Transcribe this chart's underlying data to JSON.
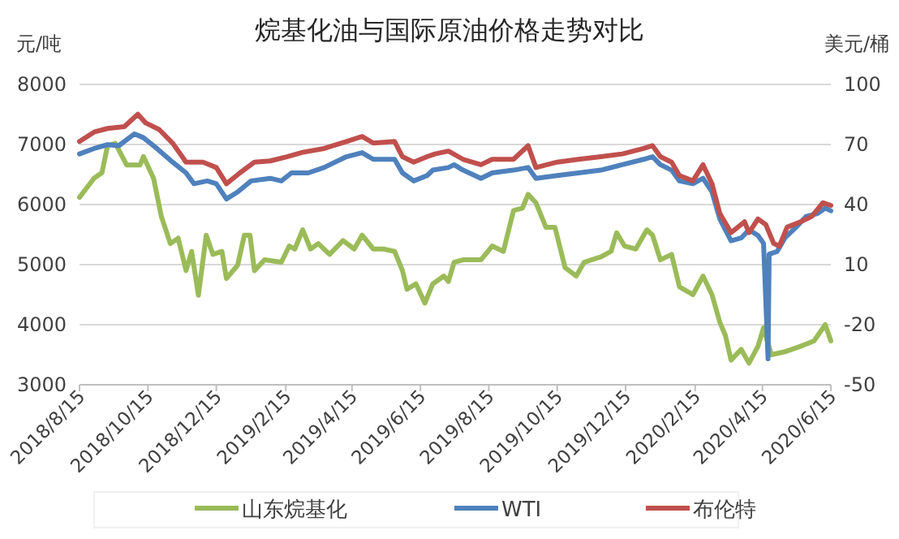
{
  "chart_data": {
    "type": "line",
    "title": "烷基化油与国际原油价格走势对比",
    "ylabel": "元/吨",
    "y2label": "美元/桶",
    "xlim": [
      "2018-08-15",
      "2020-06-15"
    ],
    "xticks": [
      {
        "value": "2018-08-15",
        "label": "2018/8/15"
      },
      {
        "value": "2018-10-15",
        "label": "2018/10/15"
      },
      {
        "value": "2018-12-15",
        "label": "2018/12/15"
      },
      {
        "value": "2019-02-15",
        "label": "2019/2/15"
      },
      {
        "value": "2019-04-15",
        "label": "2019/4/15"
      },
      {
        "value": "2019-06-15",
        "label": "2019/6/15"
      },
      {
        "value": "2019-08-15",
        "label": "2019/8/15"
      },
      {
        "value": "2019-10-15",
        "label": "2019/10/15"
      },
      {
        "value": "2019-12-15",
        "label": "2019/12/15"
      },
      {
        "value": "2020-02-15",
        "label": "2020/2/15"
      },
      {
        "value": "2020-04-15",
        "label": "2020/4/15"
      },
      {
        "value": "2020-06-15",
        "label": "2020/6/15"
      }
    ],
    "ylim": [
      3000,
      8000
    ],
    "yticks": [
      3000,
      4000,
      5000,
      6000,
      7000,
      8000
    ],
    "y2lim": [
      -50,
      100
    ],
    "y2ticks": [
      -50,
      -20,
      10,
      40,
      70,
      100
    ],
    "grid": "y",
    "legend": "bottom",
    "line_style": "solid",
    "marker": "none",
    "series": [
      {
        "name": "山东烷基化",
        "color": "#9bbb59",
        "x": [
          "2018-08-15",
          "2018-08-28",
          "2018-09-04",
          "2018-09-09",
          "2018-09-16",
          "2018-09-26",
          "2018-10-08",
          "2018-10-11",
          "2018-10-20",
          "2018-10-27",
          "2018-11-04",
          "2018-11-11",
          "2018-11-18",
          "2018-11-23",
          "2018-11-29",
          "2018-12-06",
          "2018-12-12",
          "2018-12-20",
          "2018-12-24",
          "2019-01-03",
          "2019-01-09",
          "2019-01-14",
          "2019-01-18",
          "2019-01-27",
          "2019-02-11",
          "2019-02-18",
          "2019-02-23",
          "2019-03-02",
          "2019-03-09",
          "2019-03-16",
          "2019-03-26",
          "2019-04-07",
          "2019-04-17",
          "2019-04-24",
          "2019-05-04",
          "2019-05-13",
          "2019-05-23",
          "2019-05-30",
          "2019-06-03",
          "2019-06-11",
          "2019-06-19",
          "2019-06-26",
          "2019-07-06",
          "2019-07-10",
          "2019-07-15",
          "2019-07-23",
          "2019-08-08",
          "2019-08-18",
          "2019-08-28",
          "2019-09-06",
          "2019-09-14",
          "2019-09-19",
          "2019-09-26",
          "2019-10-05",
          "2019-10-13",
          "2019-10-22",
          "2019-11-01",
          "2019-11-08",
          "2019-11-23",
          "2019-12-02",
          "2019-12-07",
          "2019-12-14",
          "2019-12-24",
          "2020-01-03",
          "2020-01-08",
          "2020-01-15",
          "2020-01-25",
          "2020-02-01",
          "2020-02-13",
          "2020-02-22",
          "2020-03-01",
          "2020-03-08",
          "2020-03-13",
          "2020-03-18",
          "2020-03-27",
          "2020-04-03",
          "2020-04-11",
          "2020-04-16",
          "2020-04-23",
          "2020-05-05",
          "2020-05-19",
          "2020-05-31",
          "2020-06-10",
          "2020-06-15"
        ],
        "values": [
          6120,
          6440,
          6530,
          6980,
          7020,
          6660,
          6660,
          6800,
          6440,
          5800,
          5350,
          5440,
          4900,
          5220,
          4490,
          5490,
          5170,
          5220,
          4770,
          4990,
          5490,
          5490,
          4900,
          5080,
          5040,
          5310,
          5260,
          5580,
          5260,
          5350,
          5170,
          5400,
          5260,
          5490,
          5260,
          5260,
          5220,
          4900,
          4590,
          4680,
          4360,
          4680,
          4810,
          4720,
          5040,
          5080,
          5080,
          5310,
          5220,
          5900,
          5940,
          6170,
          6030,
          5620,
          5620,
          4950,
          4810,
          5040,
          5130,
          5220,
          5530,
          5310,
          5260,
          5580,
          5490,
          5080,
          5170,
          4630,
          4500,
          4810,
          4500,
          4040,
          3820,
          3410,
          3590,
          3360,
          3640,
          3950,
          3500,
          3550,
          3640,
          3730,
          4000,
          3730
        ]
      },
      {
        "name": "WTI",
        "color": "#4f81bd",
        "axis": "y2",
        "x": [
          "2018-08-15",
          "2018-08-28",
          "2018-09-09",
          "2018-09-19",
          "2018-10-03",
          "2018-10-11",
          "2018-10-23",
          "2018-11-06",
          "2018-11-18",
          "2018-11-25",
          "2018-12-07",
          "2018-12-15",
          "2018-12-24",
          "2019-01-03",
          "2019-01-15",
          "2019-02-01",
          "2019-02-11",
          "2019-02-20",
          "2019-03-07",
          "2019-03-21",
          "2019-04-10",
          "2019-04-24",
          "2019-05-04",
          "2019-05-23",
          "2019-05-30",
          "2019-06-09",
          "2019-06-21",
          "2019-06-26",
          "2019-07-10",
          "2019-07-15",
          "2019-07-23",
          "2019-08-08",
          "2019-08-18",
          "2019-09-06",
          "2019-09-19",
          "2019-09-26",
          "2019-10-15",
          "2019-11-03",
          "2019-11-23",
          "2019-12-12",
          "2019-12-31",
          "2020-01-08",
          "2020-01-15",
          "2020-01-25",
          "2020-02-01",
          "2020-02-13",
          "2020-02-22",
          "2020-03-01",
          "2020-03-08",
          "2020-03-18",
          "2020-03-27",
          "2020-04-03",
          "2020-04-11",
          "2020-04-16",
          "2020-04-20",
          "2020-04-21",
          "2020-04-28",
          "2020-05-05",
          "2020-05-15",
          "2020-05-24",
          "2020-06-03",
          "2020-06-10",
          "2020-06-15"
        ],
        "values": [
          65.3,
          68.0,
          69.9,
          69.4,
          75.3,
          73.4,
          68.0,
          61.2,
          55.8,
          50.4,
          51.8,
          50.4,
          42.8,
          46.3,
          51.8,
          53.1,
          51.8,
          55.8,
          55.8,
          58.5,
          63.9,
          65.9,
          62.6,
          62.6,
          55.8,
          51.8,
          54.5,
          57.2,
          58.5,
          59.9,
          57.2,
          53.1,
          55.8,
          57.2,
          58.5,
          53.1,
          54.5,
          55.8,
          57.2,
          59.9,
          62.6,
          63.9,
          59.9,
          57.2,
          51.8,
          50.4,
          53.1,
          46.3,
          32.8,
          21.9,
          23.3,
          27.4,
          24.6,
          20.6,
          -37,
          15.2,
          16.5,
          23.3,
          28.7,
          34.1,
          35.5,
          38.2,
          36.9
        ]
      },
      {
        "name": "布伦特",
        "color": "#c0504d",
        "axis": "y2",
        "x": [
          "2018-08-15",
          "2018-08-28",
          "2018-09-09",
          "2018-09-24",
          "2018-10-06",
          "2018-10-13",
          "2018-10-25",
          "2018-11-06",
          "2018-11-18",
          "2018-12-03",
          "2018-12-15",
          "2018-12-24",
          "2019-01-05",
          "2019-01-18",
          "2019-02-01",
          "2019-02-16",
          "2019-03-02",
          "2019-03-21",
          "2019-04-10",
          "2019-04-24",
          "2019-05-04",
          "2019-05-23",
          "2019-05-30",
          "2019-06-09",
          "2019-06-21",
          "2019-06-28",
          "2019-07-10",
          "2019-07-23",
          "2019-08-08",
          "2019-08-18",
          "2019-09-06",
          "2019-09-19",
          "2019-09-26",
          "2019-10-15",
          "2019-11-03",
          "2019-11-23",
          "2019-12-12",
          "2019-12-31",
          "2020-01-08",
          "2020-01-15",
          "2020-01-25",
          "2020-02-01",
          "2020-02-13",
          "2020-02-22",
          "2020-03-01",
          "2020-03-08",
          "2020-03-18",
          "2020-03-30",
          "2020-04-03",
          "2020-04-11",
          "2020-04-18",
          "2020-04-25",
          "2020-04-30",
          "2020-05-07",
          "2020-05-19",
          "2020-05-29",
          "2020-06-08",
          "2020-06-15"
        ],
        "values": [
          71.5,
          76.2,
          78.0,
          78.9,
          85.1,
          80.8,
          77.5,
          70.7,
          61.2,
          61.2,
          58.5,
          50.4,
          55.8,
          61.2,
          61.8,
          63.9,
          66.1,
          68.0,
          71.5,
          74.0,
          70.7,
          71.5,
          63.9,
          61.2,
          63.9,
          65.3,
          66.7,
          62.6,
          59.9,
          62.6,
          62.6,
          69.4,
          58.5,
          61.2,
          62.6,
          63.9,
          65.3,
          68.0,
          69.4,
          63.9,
          61.2,
          54.5,
          51.8,
          59.9,
          50.4,
          35.5,
          26.0,
          31.4,
          26.0,
          32.8,
          30.0,
          20.6,
          19.2,
          28.7,
          31.4,
          34.1,
          40.9,
          39.6
        ]
      }
    ]
  }
}
